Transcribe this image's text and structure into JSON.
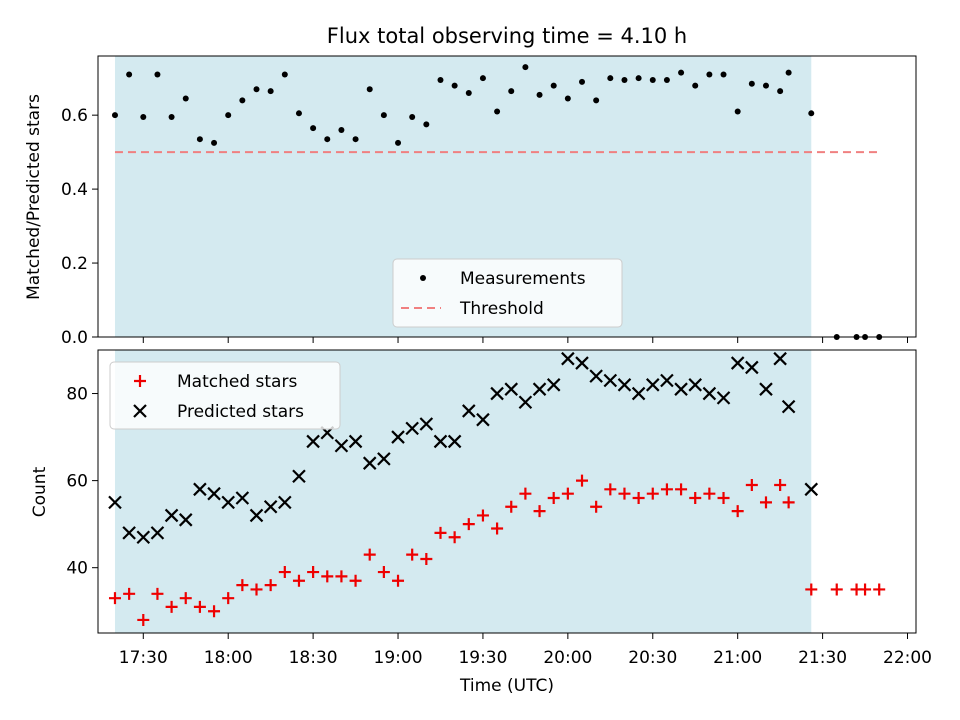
{
  "chart_data": [
    {
      "type": "scatter",
      "title": "Flux total observing time = 4.10 h",
      "xlabel": "",
      "ylabel": "Matched/Predicted stars",
      "ylim": [
        0.0,
        0.76
      ],
      "yticks": [
        "0.0",
        "0.2",
        "0.4",
        "0.6"
      ],
      "xlim": [
        "17:14",
        "22:03"
      ],
      "shaded_interval": [
        "17:20",
        "21:26"
      ],
      "shade_color": "#d4eaf0",
      "legend_position": "lower center",
      "series": [
        {
          "name": "Measurements",
          "marker": "dot",
          "color": "#000000",
          "points": [
            [
              "17:20",
              0.6
            ],
            [
              "17:25",
              0.71
            ],
            [
              "17:30",
              0.595
            ],
            [
              "17:35",
              0.71
            ],
            [
              "17:40",
              0.595
            ],
            [
              "17:45",
              0.645
            ],
            [
              "17:50",
              0.535
            ],
            [
              "17:55",
              0.525
            ],
            [
              "18:00",
              0.6
            ],
            [
              "18:05",
              0.64
            ],
            [
              "18:10",
              0.67
            ],
            [
              "18:15",
              0.665
            ],
            [
              "18:20",
              0.71
            ],
            [
              "18:25",
              0.605
            ],
            [
              "18:30",
              0.565
            ],
            [
              "18:35",
              0.535
            ],
            [
              "18:40",
              0.56
            ],
            [
              "18:45",
              0.535
            ],
            [
              "18:50",
              0.67
            ],
            [
              "18:55",
              0.6
            ],
            [
              "19:00",
              0.525
            ],
            [
              "19:05",
              0.595
            ],
            [
              "19:10",
              0.575
            ],
            [
              "19:15",
              0.695
            ],
            [
              "19:20",
              0.68
            ],
            [
              "19:25",
              0.66
            ],
            [
              "19:30",
              0.7
            ],
            [
              "19:35",
              0.61
            ],
            [
              "19:40",
              0.665
            ],
            [
              "19:45",
              0.73
            ],
            [
              "19:50",
              0.655
            ],
            [
              "19:55",
              0.68
            ],
            [
              "20:00",
              0.645
            ],
            [
              "20:05",
              0.69
            ],
            [
              "20:10",
              0.64
            ],
            [
              "20:15",
              0.7
            ],
            [
              "20:20",
              0.695
            ],
            [
              "20:25",
              0.7
            ],
            [
              "20:30",
              0.695
            ],
            [
              "20:35",
              0.695
            ],
            [
              "20:40",
              0.715
            ],
            [
              "20:45",
              0.68
            ],
            [
              "20:50",
              0.71
            ],
            [
              "20:55",
              0.71
            ],
            [
              "21:00",
              0.61
            ],
            [
              "21:05",
              0.685
            ],
            [
              "21:10",
              0.68
            ],
            [
              "21:15",
              0.665
            ],
            [
              "21:18",
              0.715
            ],
            [
              "21:26",
              0.605
            ],
            [
              "21:35",
              0.0
            ],
            [
              "21:42",
              0.0
            ],
            [
              "21:45",
              0.0
            ],
            [
              "21:50",
              0.0
            ]
          ]
        },
        {
          "name": "Threshold",
          "line_style": "dashed",
          "color": "#f08080",
          "points": [
            [
              "17:20",
              0.5
            ],
            [
              "21:50",
              0.5
            ]
          ]
        }
      ]
    },
    {
      "type": "scatter",
      "title": "",
      "xlabel": "Time (UTC)",
      "ylabel": "Count",
      "ylim": [
        25,
        90
      ],
      "yticks": [
        "40",
        "60",
        "80"
      ],
      "xlim": [
        "17:14",
        "22:03"
      ],
      "xticks": [
        "17:30",
        "18:00",
        "18:30",
        "19:00",
        "19:30",
        "20:00",
        "20:30",
        "21:00",
        "21:30",
        "22:00"
      ],
      "shaded_interval": [
        "17:20",
        "21:26"
      ],
      "shade_color": "#d4eaf0",
      "legend_position": "upper left",
      "series": [
        {
          "name": "Matched stars",
          "marker": "plus",
          "color": "#ee0000",
          "points": [
            [
              "17:20",
              33
            ],
            [
              "17:25",
              34
            ],
            [
              "17:30",
              28
            ],
            [
              "17:35",
              34
            ],
            [
              "17:40",
              31
            ],
            [
              "17:45",
              33
            ],
            [
              "17:50",
              31
            ],
            [
              "17:55",
              30
            ],
            [
              "18:00",
              33
            ],
            [
              "18:05",
              36
            ],
            [
              "18:10",
              35
            ],
            [
              "18:15",
              36
            ],
            [
              "18:20",
              39
            ],
            [
              "18:25",
              37
            ],
            [
              "18:30",
              39
            ],
            [
              "18:35",
              38
            ],
            [
              "18:40",
              38
            ],
            [
              "18:45",
              37
            ],
            [
              "18:50",
              43
            ],
            [
              "18:55",
              39
            ],
            [
              "19:00",
              37
            ],
            [
              "19:05",
              43
            ],
            [
              "19:10",
              42
            ],
            [
              "19:15",
              48
            ],
            [
              "19:20",
              47
            ],
            [
              "19:25",
              50
            ],
            [
              "19:30",
              52
            ],
            [
              "19:35",
              49
            ],
            [
              "19:40",
              54
            ],
            [
              "19:45",
              57
            ],
            [
              "19:50",
              53
            ],
            [
              "19:55",
              56
            ],
            [
              "20:00",
              57
            ],
            [
              "20:05",
              60
            ],
            [
              "20:10",
              54
            ],
            [
              "20:15",
              58
            ],
            [
              "20:20",
              57
            ],
            [
              "20:25",
              56
            ],
            [
              "20:30",
              57
            ],
            [
              "20:35",
              58
            ],
            [
              "20:40",
              58
            ],
            [
              "20:45",
              56
            ],
            [
              "20:50",
              57
            ],
            [
              "20:55",
              56
            ],
            [
              "21:00",
              53
            ],
            [
              "21:05",
              59
            ],
            [
              "21:10",
              55
            ],
            [
              "21:15",
              59
            ],
            [
              "21:18",
              55
            ],
            [
              "21:26",
              35
            ],
            [
              "21:35",
              35
            ],
            [
              "21:42",
              35
            ],
            [
              "21:45",
              35
            ],
            [
              "21:50",
              35
            ]
          ]
        },
        {
          "name": "Predicted stars",
          "marker": "x",
          "color": "#000000",
          "points": [
            [
              "17:20",
              55
            ],
            [
              "17:25",
              48
            ],
            [
              "17:30",
              47
            ],
            [
              "17:35",
              48
            ],
            [
              "17:40",
              52
            ],
            [
              "17:45",
              51
            ],
            [
              "17:50",
              58
            ],
            [
              "17:55",
              57
            ],
            [
              "18:00",
              55
            ],
            [
              "18:05",
              56
            ],
            [
              "18:10",
              52
            ],
            [
              "18:15",
              54
            ],
            [
              "18:20",
              55
            ],
            [
              "18:25",
              61
            ],
            [
              "18:30",
              69
            ],
            [
              "18:35",
              71
            ],
            [
              "18:40",
              68
            ],
            [
              "18:45",
              69
            ],
            [
              "18:50",
              64
            ],
            [
              "18:55",
              65
            ],
            [
              "19:00",
              70
            ],
            [
              "19:05",
              72
            ],
            [
              "19:10",
              73
            ],
            [
              "19:15",
              69
            ],
            [
              "19:20",
              69
            ],
            [
              "19:25",
              76
            ],
            [
              "19:30",
              74
            ],
            [
              "19:35",
              80
            ],
            [
              "19:40",
              81
            ],
            [
              "19:45",
              78
            ],
            [
              "19:50",
              81
            ],
            [
              "19:55",
              82
            ],
            [
              "20:00",
              88
            ],
            [
              "20:05",
              87
            ],
            [
              "20:10",
              84
            ],
            [
              "20:15",
              83
            ],
            [
              "20:20",
              82
            ],
            [
              "20:25",
              80
            ],
            [
              "20:30",
              82
            ],
            [
              "20:35",
              83
            ],
            [
              "20:40",
              81
            ],
            [
              "20:45",
              82
            ],
            [
              "20:50",
              80
            ],
            [
              "20:55",
              79
            ],
            [
              "21:00",
              87
            ],
            [
              "21:05",
              86
            ],
            [
              "21:10",
              81
            ],
            [
              "21:15",
              88
            ],
            [
              "21:18",
              77
            ],
            [
              "21:26",
              58
            ]
          ]
        }
      ]
    }
  ]
}
